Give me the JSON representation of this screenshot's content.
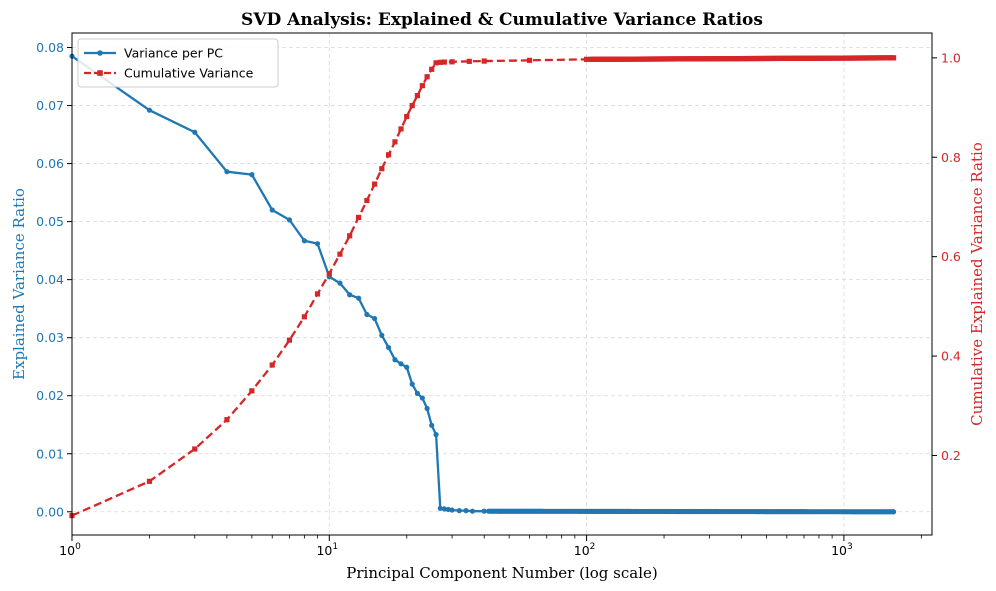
{
  "chart_data": {
    "type": "line",
    "title": "SVD Analysis: Explained & Cumulative Variance Ratios",
    "xlabel": "Principal Component Number (log scale)",
    "ylabel_left": "Explained Variance Ratio",
    "ylabel_right": "Cumulative Explained Variance Ratio",
    "xscale": "log",
    "xlim": [
      1,
      2200
    ],
    "ylim_left": [
      -0.004,
      0.0825
    ],
    "ylim_right": [
      0.04,
      1.05
    ],
    "grid": true,
    "legend_position": "top-left",
    "x_ticks": [
      {
        "value": 1,
        "base": "10",
        "exp": "0"
      },
      {
        "value": 10,
        "base": "10",
        "exp": "1"
      },
      {
        "value": 100,
        "base": "10",
        "exp": "2"
      },
      {
        "value": 1000,
        "base": "10",
        "exp": "3"
      }
    ],
    "y_ticks_left": [
      "0.00",
      "0.01",
      "0.02",
      "0.03",
      "0.04",
      "0.05",
      "0.06",
      "0.07",
      "0.08"
    ],
    "y_ticks_right": [
      "0.2",
      "0.4",
      "0.6",
      "0.8",
      "1.0"
    ],
    "tail_until": 1560,
    "series": [
      {
        "name": "Variance per PC",
        "axis": "left",
        "color": "#1f77b4",
        "style": "solid",
        "marker": "circle",
        "x": [
          1,
          2,
          3,
          4,
          5,
          6,
          7,
          8,
          9,
          10,
          11,
          12,
          13,
          14,
          15,
          16,
          17,
          18,
          19,
          20,
          21,
          22,
          23,
          24,
          25,
          26,
          27,
          28,
          29,
          30,
          32,
          34,
          36,
          40
        ],
        "values": [
          0.0785,
          0.0692,
          0.0654,
          0.0586,
          0.0581,
          0.052,
          0.0503,
          0.0467,
          0.0462,
          0.0405,
          0.0394,
          0.0374,
          0.0368,
          0.034,
          0.0333,
          0.0304,
          0.0283,
          0.0262,
          0.0255,
          0.0249,
          0.022,
          0.0204,
          0.0196,
          0.0178,
          0.0149,
          0.0133,
          0.0006,
          0.0005,
          0.0004,
          0.0003,
          0.0002,
          0.0002,
          0.0001,
          0.0001
        ],
        "tail_value": 0.0
      },
      {
        "name": "Cumulative Variance",
        "axis": "right",
        "color": "#d62728",
        "style": "dashed",
        "marker": "square",
        "x": [
          1,
          2,
          3,
          4,
          5,
          6,
          7,
          8,
          9,
          10,
          11,
          12,
          13,
          14,
          15,
          16,
          17,
          18,
          19,
          20,
          21,
          22,
          23,
          24,
          25,
          26,
          27,
          28,
          30,
          35,
          40,
          60,
          100
        ],
        "values": [
          0.079,
          0.148,
          0.213,
          0.272,
          0.33,
          0.382,
          0.432,
          0.479,
          0.525,
          0.566,
          0.605,
          0.642,
          0.679,
          0.713,
          0.746,
          0.777,
          0.805,
          0.831,
          0.857,
          0.882,
          0.904,
          0.924,
          0.944,
          0.962,
          0.977,
          0.99,
          0.991,
          0.9915,
          0.992,
          0.993,
          0.9935,
          0.995,
          0.997
        ],
        "tail_value": 1.0
      }
    ]
  }
}
